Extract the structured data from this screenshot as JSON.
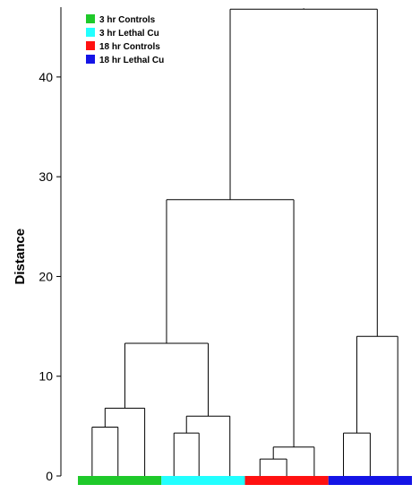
{
  "chart_data": {
    "type": "dendrogram",
    "ylabel": "Distance",
    "ylim": [
      0,
      47
    ],
    "yticks": [
      0,
      10,
      20,
      30,
      40
    ],
    "legend": {
      "placement": "top-left",
      "entries": [
        {
          "label": "3 hr Controls",
          "color": "#1fc92a"
        },
        {
          "label": "3 hr Lethal Cu",
          "color": "#22ffff"
        },
        {
          "label": "18 hr Controls",
          "color": "#ff1111"
        },
        {
          "label": "18 hr Lethal Cu",
          "color": "#1414e6"
        }
      ]
    },
    "groups": [
      {
        "name": "3 hr Controls",
        "color": "#1fc92a",
        "start": 0.0,
        "end": 1.0
      },
      {
        "name": "3 hr Lethal Cu",
        "color": "#22ffff",
        "start": 1.0,
        "end": 2.0
      },
      {
        "name": "18 hr Controls",
        "color": "#ff1111",
        "start": 2.0,
        "end": 3.0
      },
      {
        "name": "18 hr Lethal Cu",
        "color": "#1414e6",
        "start": 3.0,
        "end": 4.0
      }
    ],
    "tree": {
      "height": 46.8,
      "children": [
        {
          "height": 27.7,
          "children": [
            {
              "height": 13.3,
              "children": [
                {
                  "height": 6.8,
                  "children": [
                    {
                      "height": 4.9,
                      "children": [
                        {
                          "x": 0.17
                        },
                        {
                          "x": 0.48
                        }
                      ]
                    },
                    {
                      "x": 0.8
                    }
                  ]
                },
                {
                  "height": 6.0,
                  "children": [
                    {
                      "height": 4.3,
                      "children": [
                        {
                          "x": 1.15
                        },
                        {
                          "x": 1.45
                        }
                      ]
                    },
                    {
                      "x": 1.82
                    }
                  ]
                }
              ]
            },
            {
              "height": 2.9,
              "children": [
                {
                  "height": 1.7,
                  "children": [
                    {
                      "x": 2.18
                    },
                    {
                      "x": 2.5
                    }
                  ]
                },
                {
                  "x": 2.83
                }
              ]
            }
          ]
        },
        {
          "height": 14.0,
          "children": [
            {
              "height": 4.3,
              "children": [
                {
                  "x": 3.18
                },
                {
                  "x": 3.5
                }
              ]
            },
            {
              "x": 3.83
            }
          ]
        }
      ]
    }
  }
}
